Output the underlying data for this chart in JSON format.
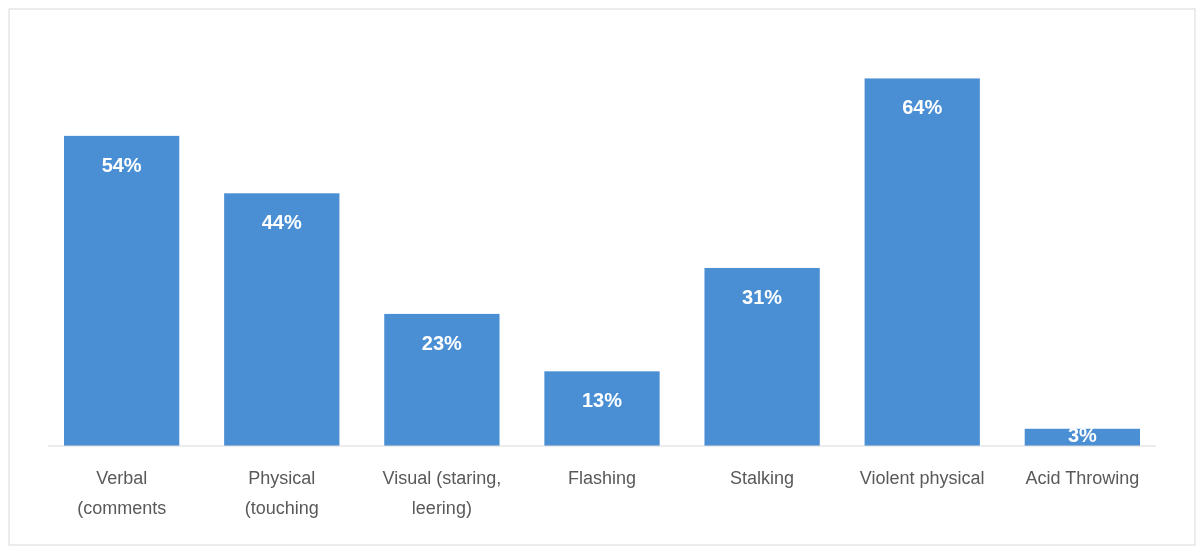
{
  "chart_data": {
    "type": "bar",
    "categories": [
      "Verbal\n(comments",
      "Physical\n(touching",
      "Visual (staring,\nleering)",
      "Flashing",
      "Stalking",
      "Violent physical",
      "Acid Throwing"
    ],
    "values": [
      54,
      44,
      23,
      13,
      31,
      64,
      3
    ],
    "value_labels": [
      "54%",
      "44%",
      "23%",
      "13%",
      "31%",
      "64%",
      "3%"
    ],
    "color": "#4a8fd4"
  }
}
